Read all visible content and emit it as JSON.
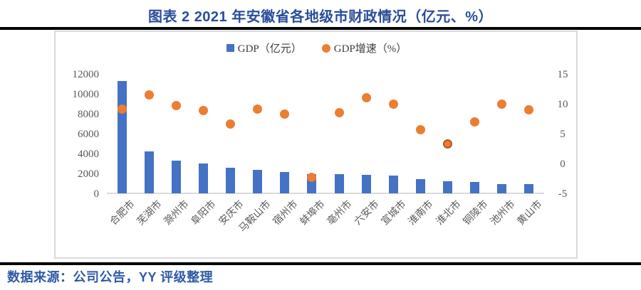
{
  "title": "图表 2 2021 年安徽省各地级市财政情况（亿元、%）",
  "footer": "数据来源：公司公告，YY 评级整理",
  "colors": {
    "bar": "#4472C4",
    "dot": "#ED7D31",
    "dot_outline": "#AE5A21",
    "title_text": "#294d9b",
    "footer_text": "#2e5aa8",
    "axis_text": "#595959",
    "frame_border": "#d9d9d9",
    "rule": "#000000"
  },
  "legend": [
    {
      "label": "GDP（亿元）",
      "marker": "square",
      "color": "#4472C4"
    },
    {
      "label": "GDP增速（%）",
      "marker": "circle",
      "color": "#ED7D31"
    }
  ],
  "chart_data": {
    "type": "bar",
    "subtype": "bar+scatter-combo",
    "categories": [
      "合肥市",
      "芜湖市",
      "滁州市",
      "阜阳市",
      "安庆市",
      "马鞍山市",
      "宿州市",
      "蚌埠市",
      "亳州市",
      "六安市",
      "宣城市",
      "淮南市",
      "淮北市",
      "铜陵市",
      "池州市",
      "黄山市"
    ],
    "series": [
      {
        "name": "GDP（亿元）",
        "type": "bar",
        "axis": "left",
        "color": "#4472C4",
        "values": [
          11413,
          4303,
          3362,
          3072,
          2657,
          2439,
          2168,
          1989,
          1973,
          1924,
          1834,
          1457,
          1223,
          1167,
          1004,
          956
        ]
      },
      {
        "name": "GDP增速（%）",
        "type": "scatter",
        "axis": "right",
        "color": "#ED7D31",
        "values": [
          9.2,
          11.6,
          9.9,
          9.0,
          6.7,
          9.2,
          8.4,
          -2.2,
          8.7,
          11.1,
          10.1,
          5.8,
          3.4,
          7.1,
          10.1,
          9.1
        ]
      }
    ],
    "left_axis": {
      "min": 0,
      "max": 12000,
      "ticks": [
        0,
        2000,
        4000,
        6000,
        8000,
        10000,
        12000
      ]
    },
    "right_axis": {
      "min": -5,
      "max": 15,
      "ticks": [
        -5,
        0,
        5,
        10,
        15
      ]
    },
    "outlined_point_index": 12,
    "grid": false,
    "legend_position": "top-center",
    "title": "图表 2 2021 年安徽省各地级市财政情况（亿元、%）"
  }
}
